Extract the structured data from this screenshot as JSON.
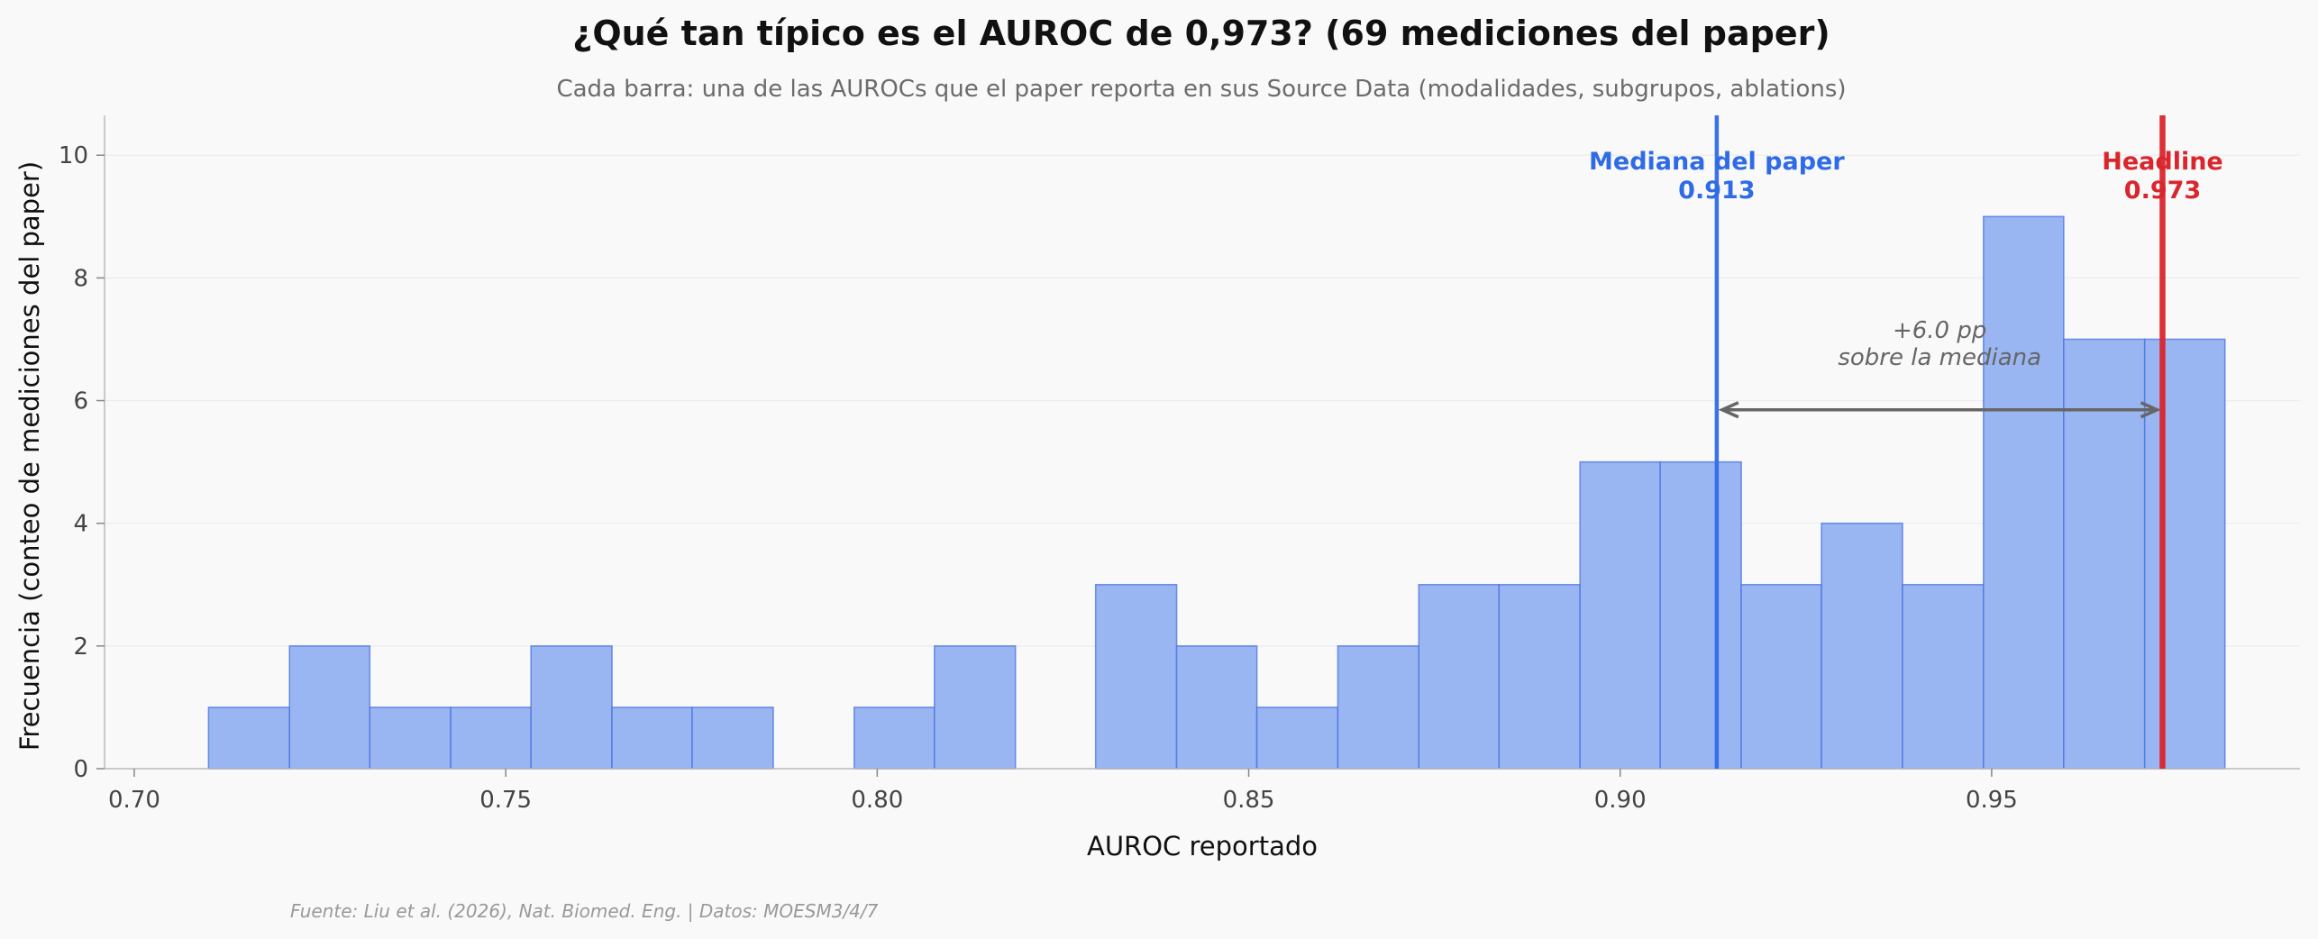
{
  "colors": {
    "background": "#f9f9f9",
    "bar_fill": "#9ab6f2",
    "bar_stroke": "#4a73e0",
    "median_line": "#2f6be6",
    "headline_line": "#d9252c",
    "grid": "#ececec",
    "arrow": "#666666"
  },
  "chart_data": {
    "type": "bar",
    "title": "¿Qué tan típico es el AUROC de 0,973? (69 mediciones del paper)",
    "subtitle": "Cada barra: una de las AUROCs que el paper reporta en sus Source Data (modalidades, subgrupos, ablations)",
    "xlabel": "AUROC reportado",
    "ylabel": "Frecuencia (conteo de mediciones del paper)",
    "xlim": [
      0.696,
      0.9915
    ],
    "ylim": [
      0,
      10.65
    ],
    "x_ticks": [
      0.7,
      0.75,
      0.8,
      0.85,
      0.9,
      0.95
    ],
    "x_tick_labels": [
      "0.70",
      "0.75",
      "0.80",
      "0.85",
      "0.90",
      "0.95"
    ],
    "y_ticks": [
      0,
      2,
      4,
      6,
      8,
      10
    ],
    "y_tick_labels": [
      "0",
      "2",
      "4",
      "6",
      "8",
      "10"
    ],
    "grid": "horizontal",
    "bin_edges": [
      0.71,
      0.7209,
      0.7317,
      0.7426,
      0.7534,
      0.7643,
      0.7751,
      0.786,
      0.7969,
      0.8077,
      0.8186,
      0.8294,
      0.8403,
      0.8511,
      0.862,
      0.8729,
      0.8837,
      0.8946,
      0.9054,
      0.9163,
      0.9271,
      0.938,
      0.9489,
      0.9597,
      0.9706,
      0.9814
    ],
    "counts": [
      1,
      2,
      1,
      1,
      2,
      1,
      1,
      0,
      1,
      2,
      0,
      3,
      2,
      1,
      2,
      3,
      3,
      5,
      5,
      3,
      4,
      3,
      9,
      7,
      7
    ],
    "reference_lines": [
      {
        "x": 0.913,
        "label": "Mediana del paper",
        "value_label": "0.913",
        "color": "#2f6be6"
      },
      {
        "x": 0.973,
        "label": "Headline",
        "value_label": "0.973",
        "color": "#d9252c"
      }
    ],
    "annotation": {
      "text_line1": "+6.0 pp",
      "text_line2": "sobre la mediana",
      "from_x": 0.913,
      "to_x": 0.973,
      "y": 5.85
    },
    "source": "Fuente: Liu et al. (2026), Nat. Biomed. Eng. | Datos: MOESM3/4/7"
  }
}
